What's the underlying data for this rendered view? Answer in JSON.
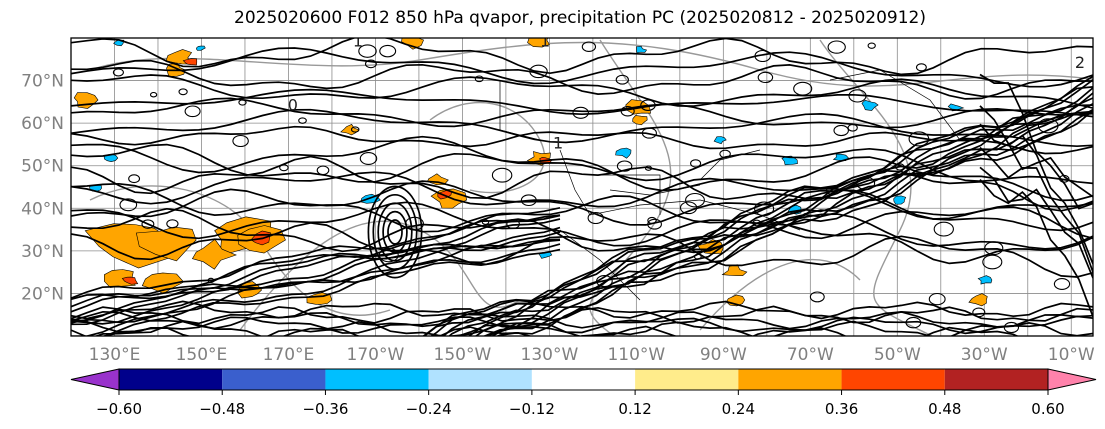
{
  "chart_data": {
    "type": "map",
    "title": "2025020600 F012 850 hPa qvapor, precipitation PC (2025020812 - 2025020912)",
    "projection": "cylindrical",
    "extent": {
      "lon": [
        120,
        355
      ],
      "lat": [
        10,
        80
      ]
    },
    "grid": true,
    "lat_ticks": [
      {
        "value": 20,
        "label": "20°N"
      },
      {
        "value": 30,
        "label": "30°N"
      },
      {
        "value": 40,
        "label": "40°N"
      },
      {
        "value": 50,
        "label": "50°N"
      },
      {
        "value": 60,
        "label": "60°N"
      },
      {
        "value": 70,
        "label": "70°N"
      }
    ],
    "lon_ticks": [
      {
        "value": 130,
        "label": "130°E"
      },
      {
        "value": 150,
        "label": "150°E"
      },
      {
        "value": 170,
        "label": "170°E"
      },
      {
        "value": 190,
        "label": "170°W"
      },
      {
        "value": 210,
        "label": "150°W"
      },
      {
        "value": 230,
        "label": "130°W"
      },
      {
        "value": 250,
        "label": "110°W"
      },
      {
        "value": 270,
        "label": "90°W"
      },
      {
        "value": 290,
        "label": "70°W"
      },
      {
        "value": 310,
        "label": "50°W"
      },
      {
        "value": 330,
        "label": "30°W"
      },
      {
        "value": 350,
        "label": "10°W"
      }
    ],
    "contour_labels": [
      {
        "text": "1",
        "lon": 186,
        "lat": 78
      },
      {
        "text": "1",
        "lon": 229,
        "lat": 78
      },
      {
        "text": "2",
        "lon": 352,
        "lat": 73
      },
      {
        "text": "1",
        "lon": 232,
        "lat": 54
      },
      {
        "text": "0",
        "lon": 171,
        "lat": 63
      }
    ],
    "colorbar": {
      "ticks": [
        "−0.60",
        "−0.48",
        "−0.36",
        "−0.24",
        "−0.12",
        "0.12",
        "0.24",
        "0.36",
        "0.48",
        "0.60"
      ],
      "colors": [
        "#9932cc",
        "#00008b",
        "#3a5fcd",
        "#00bfff",
        "#b0e2ff",
        "#ffffff",
        "#ffec8b",
        "#ffa500",
        "#ff4500",
        "#b22222",
        "#ff82ab"
      ]
    },
    "precip_colors": {
      "positive_low": "#ffa500",
      "positive_high": "#ff4500",
      "negative": "#00bfff"
    }
  }
}
